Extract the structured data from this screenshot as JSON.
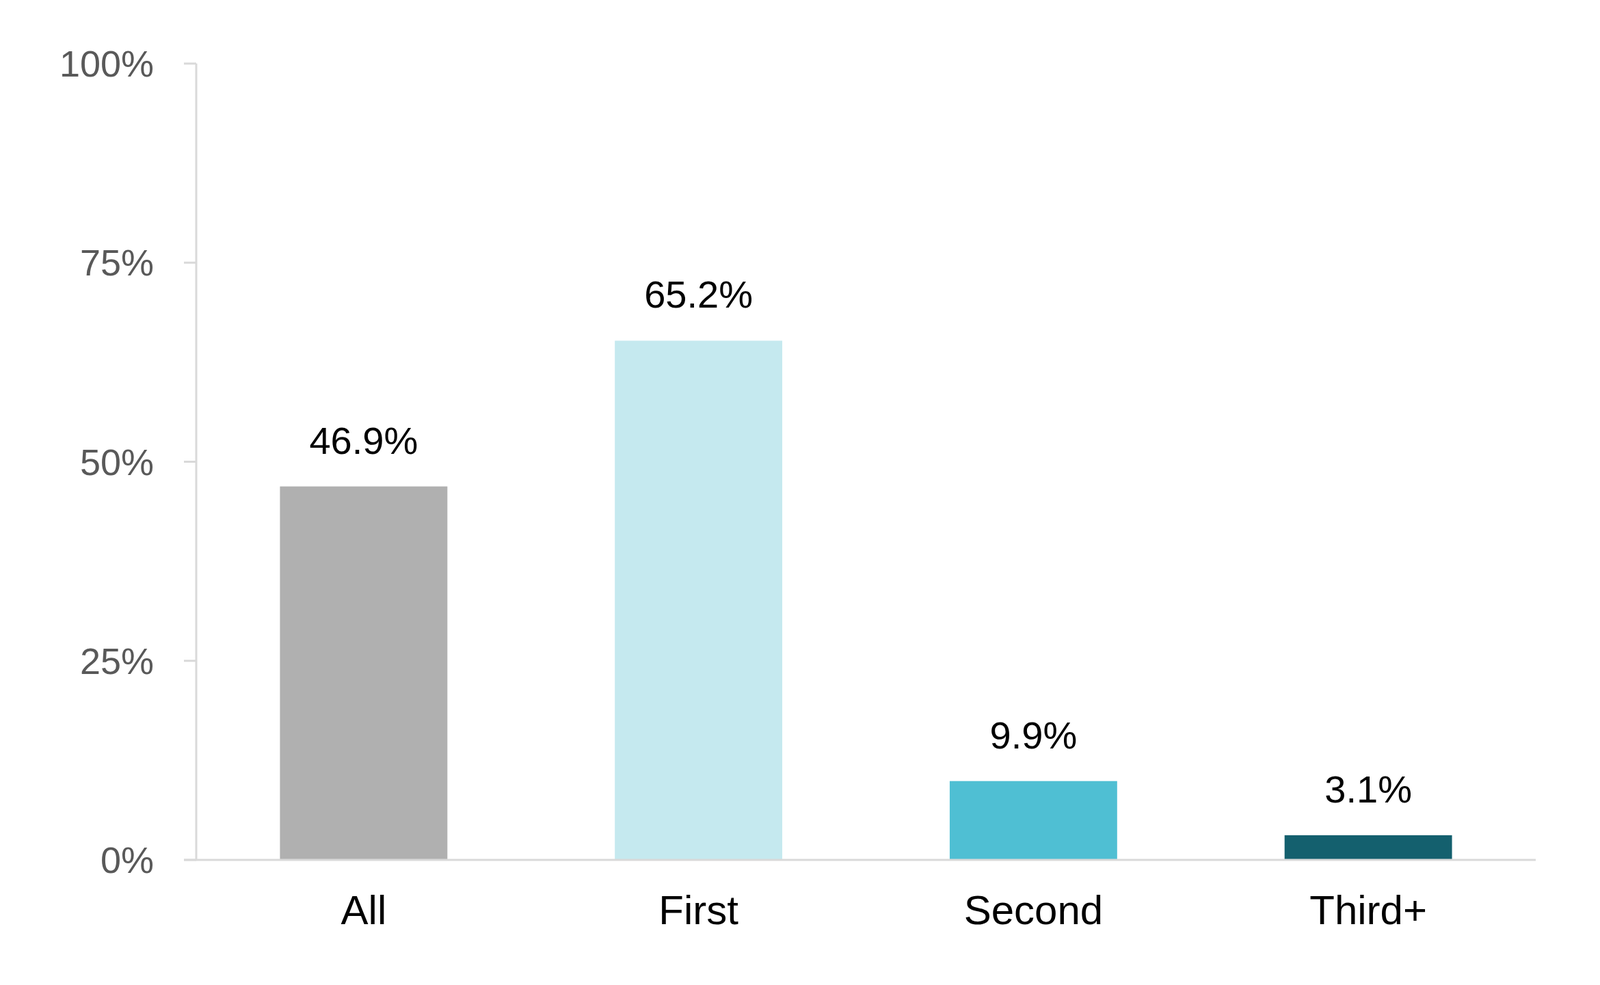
{
  "chart_data": {
    "type": "bar",
    "categories": [
      "All",
      "First",
      "Second",
      "Third+"
    ],
    "values": [
      46.9,
      65.2,
      9.9,
      3.1
    ],
    "value_labels": [
      "46.9%",
      "65.2%",
      "9.9%",
      "3.1%"
    ],
    "colors": [
      "#b0b0b0",
      "#c5e9ef",
      "#4fbfd3",
      "#14606e"
    ],
    "ylim": [
      0,
      100
    ],
    "yticks": [
      {
        "value": 0,
        "label": "0%"
      },
      {
        "value": 25,
        "label": "25%"
      },
      {
        "value": 50,
        "label": "50%"
      },
      {
        "value": 75,
        "label": "75%"
      },
      {
        "value": 100,
        "label": "100%"
      }
    ],
    "grid": false,
    "data_labels": true
  }
}
